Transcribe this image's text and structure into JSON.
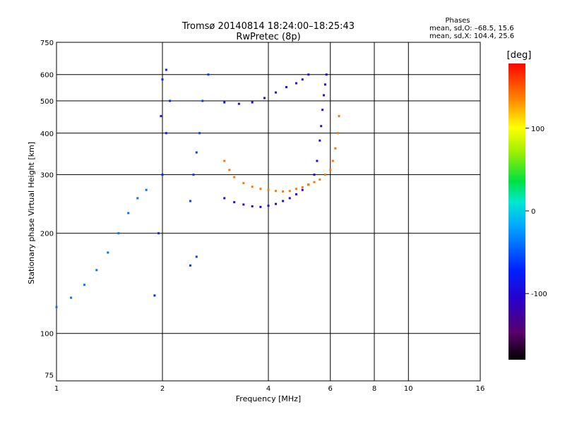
{
  "chart_data": {
    "type": "scatter",
    "title": "Tromsø 20140814 18:24:00–18:25:43",
    "subtitle": "RwPretec (8p)",
    "stats": {
      "heading": "Phases",
      "line1": "mean, sd,O: –68.5, 15.6",
      "line2": "mean, sd,X: 104.4, 25.6"
    },
    "xlabel": "Frequency [MHz]",
    "ylabel": "Stationary phase Virtual Height [km]",
    "x_scale": "log",
    "y_scale": "log",
    "xlim": [
      1,
      16
    ],
    "ylim": [
      72,
      750
    ],
    "x_ticks": [
      1,
      2,
      4,
      6,
      8,
      10,
      16
    ],
    "y_ticks": [
      75,
      100,
      200,
      300,
      400,
      500,
      600,
      750
    ],
    "x_gridlines": [
      2,
      4,
      6,
      8,
      10
    ],
    "y_gridlines": [
      100,
      200,
      300,
      400,
      500,
      600
    ],
    "colorbar": {
      "label": "[deg]",
      "range": [
        -180,
        180
      ],
      "ticks": [
        100,
        0,
        -100
      ],
      "colormap": "rainbow (black–purple–blue–cyan–green–yellow–orange–red)"
    },
    "series": [
      {
        "id": "F-trace-O-mode",
        "phase_deg": -95,
        "points": [
          [
            3.0,
            255
          ],
          [
            3.2,
            248
          ],
          [
            3.4,
            244
          ],
          [
            3.6,
            241
          ],
          [
            3.8,
            240
          ],
          [
            4.0,
            242
          ],
          [
            4.2,
            245
          ],
          [
            4.4,
            250
          ],
          [
            4.6,
            255
          ],
          [
            4.8,
            262
          ],
          [
            5.0,
            270
          ],
          [
            5.2,
            280
          ],
          [
            5.4,
            300
          ],
          [
            5.5,
            330
          ],
          [
            5.6,
            380
          ],
          [
            5.65,
            420
          ],
          [
            5.7,
            470
          ],
          [
            5.75,
            520
          ],
          [
            5.8,
            560
          ],
          [
            5.85,
            600
          ]
        ]
      },
      {
        "id": "F-trace-X-mode",
        "phase_deg": 140,
        "points": [
          [
            3.0,
            330
          ],
          [
            3.1,
            310
          ],
          [
            3.2,
            295
          ],
          [
            3.4,
            283
          ],
          [
            3.6,
            276
          ],
          [
            3.8,
            272
          ],
          [
            4.0,
            270
          ],
          [
            4.2,
            268
          ],
          [
            4.4,
            267
          ],
          [
            4.6,
            268
          ],
          [
            4.8,
            272
          ],
          [
            5.0,
            275
          ],
          [
            5.2,
            280
          ],
          [
            5.4,
            285
          ],
          [
            5.6,
            290
          ],
          [
            5.8,
            300
          ],
          [
            6.0,
            310
          ],
          [
            6.1,
            330
          ],
          [
            6.2,
            360
          ],
          [
            6.3,
            400
          ],
          [
            6.35,
            450
          ]
        ]
      },
      {
        "id": "multihop-echo",
        "phase_deg": -90,
        "points": [
          [
            3.0,
            495
          ],
          [
            3.3,
            490
          ],
          [
            3.6,
            495
          ],
          [
            3.9,
            510
          ],
          [
            4.2,
            530
          ],
          [
            4.5,
            550
          ],
          [
            4.8,
            565
          ],
          [
            5.0,
            580
          ],
          [
            5.2,
            600
          ]
        ]
      },
      {
        "id": "low-band-trace",
        "phase_deg": -40,
        "points": [
          [
            1.0,
            120
          ],
          [
            1.1,
            128
          ],
          [
            1.2,
            140
          ],
          [
            1.3,
            155
          ],
          [
            1.4,
            175
          ],
          [
            1.5,
            200
          ],
          [
            1.6,
            230
          ],
          [
            1.7,
            255
          ],
          [
            1.8,
            270
          ]
        ]
      },
      {
        "id": "spread-F-2MHz",
        "phase_deg": -70,
        "points": [
          [
            1.9,
            130
          ],
          [
            1.95,
            200
          ],
          [
            2.0,
            300
          ],
          [
            2.05,
            400
          ],
          [
            2.1,
            500
          ],
          [
            2.05,
            620
          ],
          [
            2.0,
            580
          ],
          [
            1.98,
            450
          ]
        ]
      },
      {
        "id": "spread-2.5MHz",
        "phase_deg": -60,
        "points": [
          [
            2.4,
            250
          ],
          [
            2.45,
            300
          ],
          [
            2.5,
            350
          ],
          [
            2.55,
            400
          ],
          [
            2.6,
            500
          ],
          [
            2.7,
            600
          ],
          [
            2.5,
            170
          ],
          [
            2.4,
            160
          ]
        ]
      }
    ]
  }
}
